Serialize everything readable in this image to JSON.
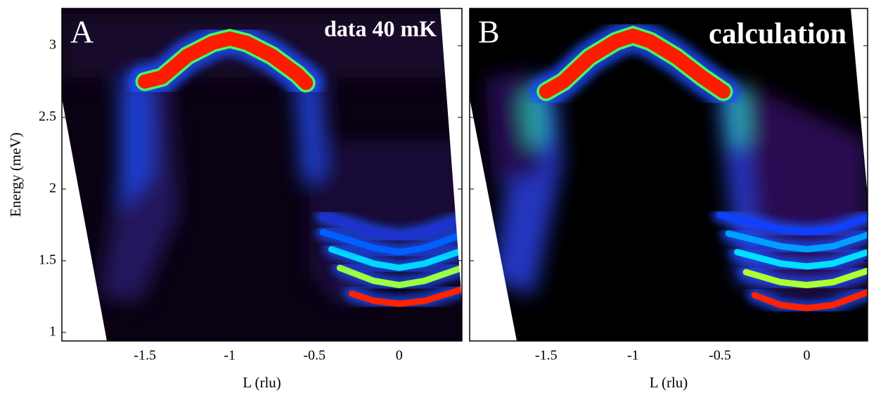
{
  "chart_data": [
    {
      "type": "heatmap",
      "title": "A",
      "subtitle": "data 40 mK",
      "xlabel": "L (rlu)",
      "ylabel": "Energy (meV)",
      "xlim": [
        -1.99,
        0.37
      ],
      "ylim": [
        0.94,
        3.26
      ],
      "xticks": [
        -1.5,
        -1,
        -0.5,
        0
      ],
      "yticks": [
        1,
        1.5,
        2,
        2.5,
        3
      ],
      "ytick_labels": true,
      "series": [
        {
          "color": "#ff1a00",
          "x": [
            -1.5,
            -1.4,
            -1.25,
            -1.1,
            -1,
            -0.9,
            -0.75,
            -0.6,
            -0.55
          ],
          "values": [
            2.75,
            2.78,
            2.93,
            3.02,
            3.05,
            3.02,
            2.93,
            2.8,
            2.74
          ]
        },
        {
          "color": "#ff2200",
          "x": [
            -0.28,
            -0.15,
            0,
            0.15,
            0.37
          ],
          "values": [
            1.27,
            1.22,
            1.2,
            1.22,
            1.3
          ]
        },
        {
          "color": "#9cff40",
          "x": [
            -0.35,
            -0.15,
            0,
            0.15,
            0.37
          ],
          "values": [
            1.45,
            1.36,
            1.33,
            1.36,
            1.45
          ]
        },
        {
          "color": "#00d8ff",
          "x": [
            -0.4,
            -0.15,
            0,
            0.15,
            0.37
          ],
          "values": [
            1.58,
            1.48,
            1.45,
            1.48,
            1.57
          ]
        },
        {
          "color": "#0060ff",
          "x": [
            -0.45,
            -0.15,
            0,
            0.15,
            0.37
          ],
          "values": [
            1.7,
            1.59,
            1.56,
            1.59,
            1.68
          ]
        },
        {
          "color": "#2030d0",
          "x": [
            -0.45,
            -0.15,
            0,
            0.15,
            0.37
          ],
          "values": [
            1.81,
            1.7,
            1.67,
            1.7,
            1.79
          ]
        }
      ]
    },
    {
      "type": "heatmap",
      "title": "B",
      "subtitle": "calculation",
      "xlabel": "L (rlu)",
      "xlim": [
        -1.94,
        0.35
      ],
      "ylim": [
        0.94,
        3.26
      ],
      "xticks": [
        -1.5,
        -1,
        -0.5,
        0
      ],
      "yticks": [
        1.5,
        2,
        2.5,
        3
      ],
      "ytick_labels": false,
      "series": [
        {
          "color": "#ff1a00",
          "x": [
            -1.5,
            -1.4,
            -1.25,
            -1.1,
            -1,
            -0.9,
            -0.75,
            -0.6,
            -0.48
          ],
          "values": [
            2.68,
            2.75,
            2.92,
            3.03,
            3.07,
            3.03,
            2.92,
            2.78,
            2.68
          ]
        },
        {
          "color": "#ff2200",
          "x": [
            -0.3,
            -0.15,
            0,
            0.15,
            0.35
          ],
          "values": [
            1.26,
            1.19,
            1.17,
            1.19,
            1.28
          ]
        },
        {
          "color": "#b0ff30",
          "x": [
            -0.35,
            -0.15,
            0,
            0.15,
            0.35
          ],
          "values": [
            1.42,
            1.35,
            1.33,
            1.35,
            1.43
          ]
        },
        {
          "color": "#00e0ff",
          "x": [
            -0.4,
            -0.15,
            0,
            0.15,
            0.35
          ],
          "values": [
            1.56,
            1.48,
            1.46,
            1.48,
            1.56
          ]
        },
        {
          "color": "#00a0ff",
          "x": [
            -0.45,
            -0.15,
            0,
            0.15,
            0.35
          ],
          "values": [
            1.69,
            1.6,
            1.58,
            1.6,
            1.68
          ]
        },
        {
          "color": "#1040ff",
          "x": [
            -0.5,
            -0.15,
            0,
            0.15,
            0.35
          ],
          "values": [
            1.82,
            1.72,
            1.7,
            1.72,
            1.8
          ]
        }
      ]
    }
  ]
}
